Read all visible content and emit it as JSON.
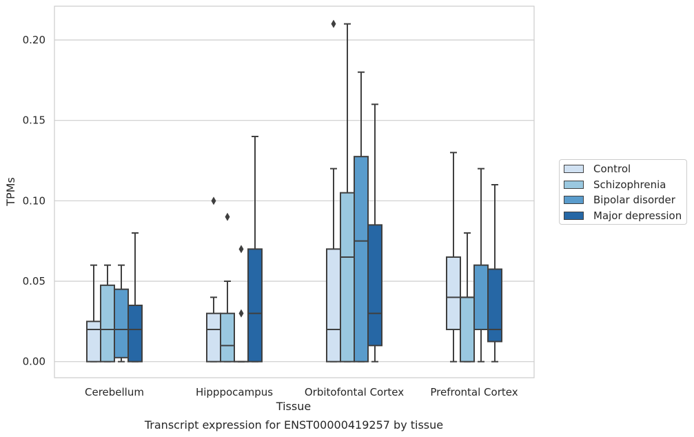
{
  "chart_data": {
    "type": "boxplot",
    "title": "Transcript expression for ENST00000419257 by tissue",
    "xlabel": "Tissue",
    "ylabel": "TPMs",
    "ylim": [
      -0.01,
      0.221
    ],
    "yticks": [
      0.0,
      0.05,
      0.1,
      0.15,
      0.2
    ],
    "ytick_labels": [
      "0.00",
      "0.05",
      "0.10",
      "0.15",
      "0.20"
    ],
    "grid": "horizontal",
    "legend_position": "right",
    "categories": [
      "Cerebellum",
      "Hipppocampus",
      "Orbitofontal Cortex",
      "Prefrontal Cortex"
    ],
    "series": [
      {
        "name": "Control",
        "color": "#d0e1f2",
        "boxes": [
          {
            "whislo": 0.0,
            "q1": 0.0,
            "med": 0.02,
            "q3": 0.025,
            "whishi": 0.06,
            "fliers": []
          },
          {
            "whislo": 0.0,
            "q1": 0.0,
            "med": 0.02,
            "q3": 0.03,
            "whishi": 0.04,
            "fliers": [
              0.1
            ]
          },
          {
            "whislo": 0.0,
            "q1": 0.0,
            "med": 0.02,
            "q3": 0.07,
            "whishi": 0.12,
            "fliers": [
              0.21
            ]
          },
          {
            "whislo": 0.0,
            "q1": 0.02,
            "med": 0.04,
            "q3": 0.065,
            "whishi": 0.13,
            "fliers": []
          }
        ]
      },
      {
        "name": "Schizophrenia",
        "color": "#9ac8e0",
        "boxes": [
          {
            "whislo": 0.0,
            "q1": 0.0,
            "med": 0.02,
            "q3": 0.0475,
            "whishi": 0.06,
            "fliers": []
          },
          {
            "whislo": 0.0,
            "q1": 0.0,
            "med": 0.01,
            "q3": 0.03,
            "whishi": 0.05,
            "fliers": [
              0.09
            ]
          },
          {
            "whislo": 0.0,
            "q1": 0.0,
            "med": 0.065,
            "q3": 0.105,
            "whishi": 0.21,
            "fliers": []
          },
          {
            "whislo": 0.0,
            "q1": 0.0,
            "med": 0.04,
            "q3": 0.04,
            "whishi": 0.08,
            "fliers": []
          }
        ]
      },
      {
        "name": "Bipolar disorder",
        "color": "#5a9ccc",
        "boxes": [
          {
            "whislo": 0.0,
            "q1": 0.0025,
            "med": 0.02,
            "q3": 0.045,
            "whishi": 0.06,
            "fliers": []
          },
          {
            "whislo": 0.0,
            "q1": 0.0,
            "med": 0.0,
            "q3": 0.0,
            "whishi": 0.0,
            "fliers": [
              0.03,
              0.07
            ]
          },
          {
            "whislo": 0.0,
            "q1": 0.0,
            "med": 0.075,
            "q3": 0.1275,
            "whishi": 0.18,
            "fliers": []
          },
          {
            "whislo": 0.0,
            "q1": 0.02,
            "med": 0.02,
            "q3": 0.06,
            "whishi": 0.12,
            "fliers": []
          }
        ]
      },
      {
        "name": "Major depression",
        "color": "#2667a5",
        "boxes": [
          {
            "whislo": 0.0,
            "q1": 0.0,
            "med": 0.02,
            "q3": 0.035,
            "whishi": 0.08,
            "fliers": []
          },
          {
            "whislo": 0.0,
            "q1": 0.0,
            "med": 0.03,
            "q3": 0.07,
            "whishi": 0.14,
            "fliers": []
          },
          {
            "whislo": 0.0,
            "q1": 0.01,
            "med": 0.03,
            "q3": 0.085,
            "whishi": 0.16,
            "fliers": []
          },
          {
            "whislo": 0.0,
            "q1": 0.0125,
            "med": 0.02,
            "q3": 0.0575,
            "whishi": 0.11,
            "fliers": []
          }
        ]
      }
    ]
  }
}
